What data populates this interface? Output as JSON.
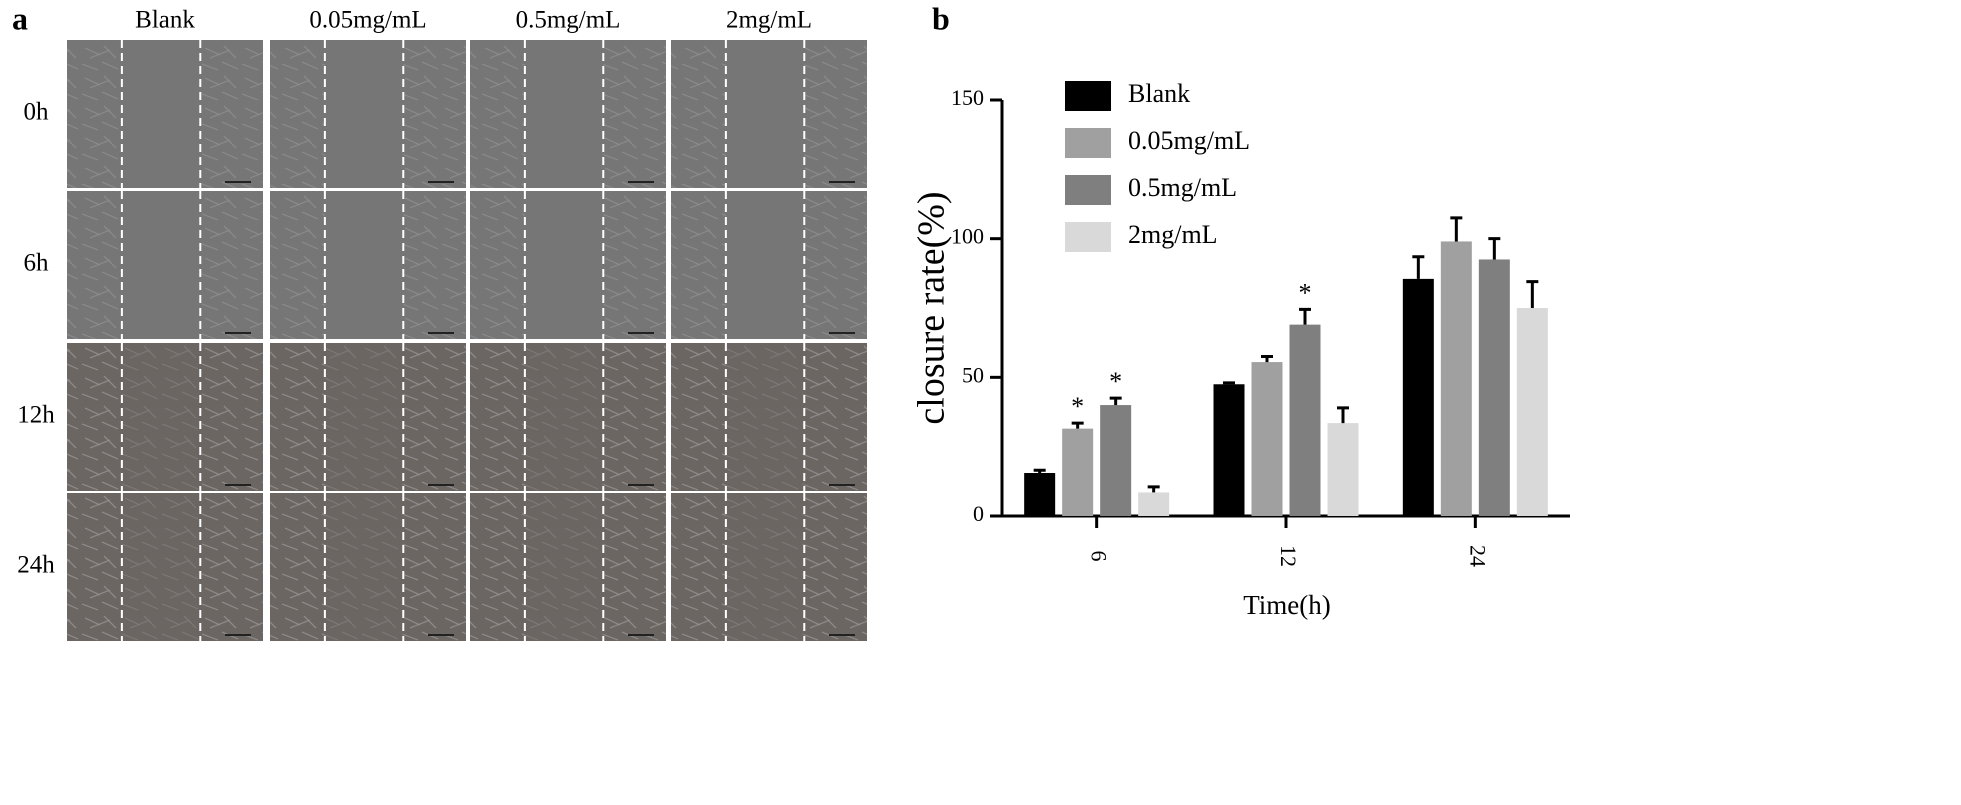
{
  "panel_a": {
    "label": "a",
    "columns": [
      "Blank",
      "0.05mg/mL",
      "0.5mg/mL",
      "2mg/mL"
    ],
    "rows": [
      "0h",
      "6h",
      "12h",
      "24h"
    ]
  },
  "chart_data": {
    "type": "bar",
    "panel_label": "b",
    "x_label": "Time(h)",
    "y_label": "closure rate(%)",
    "categories": [
      "6",
      "12",
      "24"
    ],
    "ylim": [
      0,
      150
    ],
    "yticks": [
      0,
      50,
      100,
      150
    ],
    "series": [
      {
        "name": "Blank",
        "color": "#000000",
        "values": [
          15.5,
          47.5,
          85.5
        ],
        "errors": [
          1,
          0.5,
          8
        ],
        "annotations": [
          null,
          null,
          null
        ]
      },
      {
        "name": "0.05mg/mL",
        "color": "#a0a0a0",
        "values": [
          31.5,
          55.5,
          99
        ],
        "errors": [
          2,
          2,
          8.5
        ],
        "annotations": [
          "*",
          null,
          null
        ]
      },
      {
        "name": "0.5mg/mL",
        "color": "#7f7f7f",
        "values": [
          40,
          69,
          92.5
        ],
        "errors": [
          2.5,
          5.5,
          7.5
        ],
        "annotations": [
          "*",
          "*",
          null
        ]
      },
      {
        "name": "2mg/mL",
        "color": "#d9d9d9",
        "values": [
          8.5,
          33.5,
          75
        ],
        "errors": [
          2,
          5.5,
          9.5
        ],
        "annotations": [
          null,
          null,
          null
        ]
      }
    ]
  }
}
